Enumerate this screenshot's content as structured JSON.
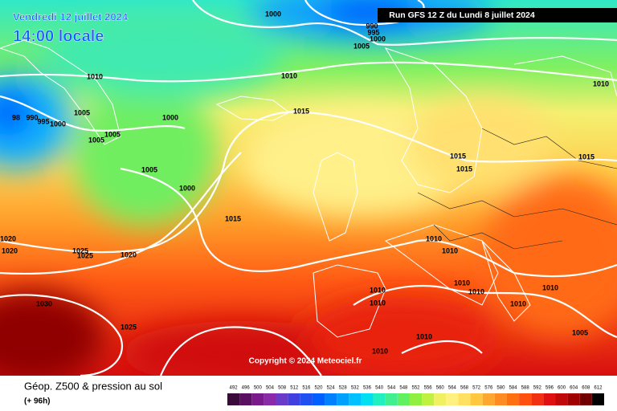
{
  "header": {
    "date": "Vendredi 12 juillet 2024",
    "time": "14:00 locale",
    "run": "Run GFS 12 Z du Lundi 8 juillet 2024"
  },
  "copyright": "Copyright © 2024 Meteociel.fr",
  "footer": {
    "title": "Géop. Z500 & pression au sol",
    "subtitle": "(+ 96h)"
  },
  "legend": {
    "values": [
      492,
      496,
      500,
      504,
      508,
      512,
      516,
      520,
      524,
      528,
      532,
      536,
      540,
      544,
      548,
      552,
      556,
      560,
      564,
      568,
      572,
      576,
      580,
      584,
      588,
      592,
      596,
      600,
      604,
      608,
      612
    ],
    "colors": [
      "#3a0a3a",
      "#5a1060",
      "#7a1a8a",
      "#8a2aa8",
      "#6a3ac8",
      "#4040e0",
      "#2050f0",
      "#0060ff",
      "#0080ff",
      "#00a0ff",
      "#00c0ff",
      "#00e0f0",
      "#20f0c0",
      "#40f090",
      "#60f060",
      "#90f040",
      "#c0f040",
      "#f0f060",
      "#fff080",
      "#ffe060",
      "#ffc840",
      "#ffa830",
      "#ff8c20",
      "#ff7010",
      "#ff5010",
      "#f03010",
      "#e01010",
      "#c00808",
      "#a00000",
      "#700000",
      "#000000"
    ]
  },
  "isobar_labels": [
    "1000",
    "990",
    "995",
    "1000",
    "1005",
    "1010",
    "1010",
    "1010",
    "1005",
    "1000",
    "98",
    "990",
    "995",
    "1000",
    "1005",
    "1005",
    "1015",
    "1005",
    "1000",
    "1015",
    "1015",
    "1015",
    "1015",
    "1020",
    "1020",
    "1025",
    "1025",
    "1020",
    "1010",
    "1010",
    "1010",
    "1010",
    "1010",
    "1010",
    "1010",
    "1010",
    "1030",
    "1025",
    "1005",
    "1010",
    "1010"
  ]
}
